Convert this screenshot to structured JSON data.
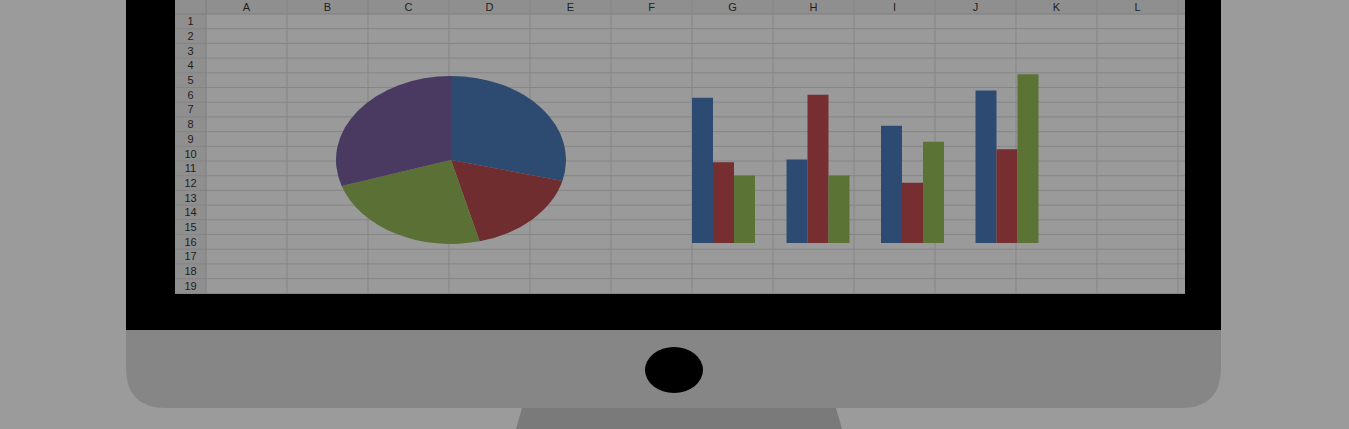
{
  "columns": [
    "A",
    "B",
    "C",
    "D",
    "E",
    "F",
    "G",
    "H",
    "I",
    "J",
    "K",
    "L"
  ],
  "rows": [
    1,
    2,
    3,
    4,
    5,
    6,
    7,
    8,
    9,
    10,
    11,
    12,
    13,
    14,
    15,
    16,
    17,
    18,
    19
  ],
  "chart_data": [
    {
      "type": "pie",
      "values": [
        29,
        17,
        24,
        30
      ],
      "colors": [
        "#2d4b70",
        "#6f2d2f",
        "#5b7035",
        "#4a3a62"
      ]
    },
    {
      "type": "bar",
      "categories": [
        null,
        null,
        null,
        null
      ],
      "series": [
        {
          "color": "#2d4b72",
          "values": [
            9.9,
            5.7,
            8.0,
            10.4
          ]
        },
        {
          "color": "#762e30",
          "values": [
            5.5,
            10.1,
            4.1,
            6.4
          ]
        },
        {
          "color": "#5b7334",
          "values": [
            4.6,
            4.6,
            6.9,
            11.5
          ]
        }
      ],
      "ylim": [
        0,
        12
      ],
      "tick_labels": false
    }
  ]
}
